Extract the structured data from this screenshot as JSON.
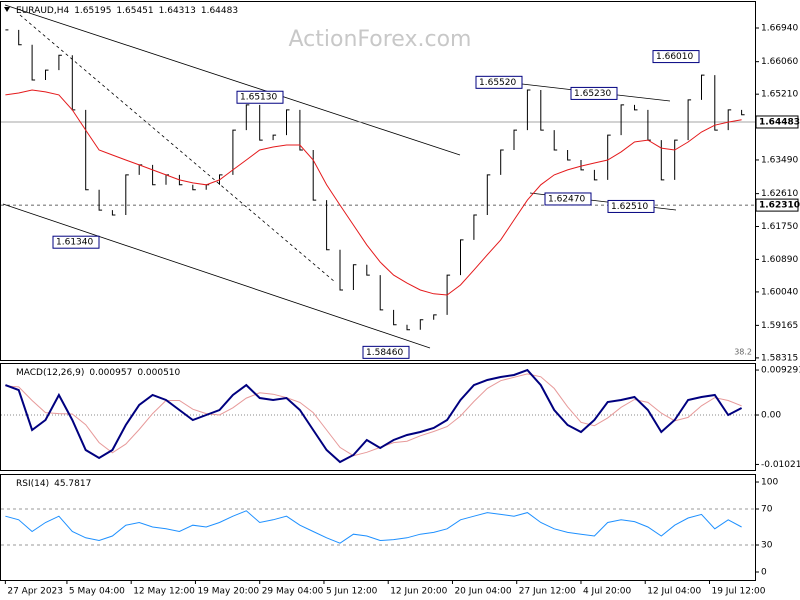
{
  "chart_data": [
    {
      "type": "price",
      "title": "EURAUD,H4",
      "header_values": [
        1.65195,
        1.65451,
        1.64313,
        1.64483
      ],
      "watermark": "ActionForex.com",
      "xlim": [
        -0.4,
        56
      ],
      "ylim": [
        1.5826,
        1.6762
      ],
      "yticks": [
        {
          "value": 1.6694,
          "label": "1.66940"
        },
        {
          "value": 1.6606,
          "label": "1.66060"
        },
        {
          "value": 1.6521,
          "label": "1.65210"
        },
        {
          "value": 1.6349,
          "label": "1.63490"
        },
        {
          "value": 1.6261,
          "label": "1.62610"
        },
        {
          "value": 1.6175,
          "label": "1.61750"
        },
        {
          "value": 1.6089,
          "label": "1.60890"
        },
        {
          "value": 1.6004,
          "label": "1.60040"
        },
        1.59165,
        1.58315
      ],
      "levels": [
        {
          "value": 1.64483,
          "label": "1.64483"
        },
        {
          "value": 1.6231,
          "label": "1.62310"
        }
      ],
      "annotations": [
        {
          "value": 1.6513,
          "label": "1.65130"
        },
        {
          "value": 1.6134,
          "label": "1.61340"
        },
        {
          "value": 1.5846,
          "label": "1.58460"
        },
        {
          "value": 1.6552,
          "label": "1.65520"
        },
        {
          "value": 1.6523,
          "label": "1.65230"
        },
        {
          "value": 1.6247,
          "label": "1.62470"
        },
        {
          "value": 1.6251,
          "label": "1.62510"
        },
        {
          "value": 1.6601,
          "label": "1.66010"
        }
      ],
      "fib_label": 38.2,
      "series": [
        {
          "color": "#000000",
          "values": [
            1.6689,
            1.665,
            1.6558,
            1.6584,
            1.6623,
            1.648,
            1.6271,
            1.6218,
            1.6205,
            1.631,
            1.6336,
            1.6284,
            1.631,
            1.6284,
            1.6271,
            1.6284,
            1.631,
            1.6427,
            1.6493,
            1.6401,
            1.6414,
            1.648,
            1.6375,
            1.6244,
            1.6114,
            1.6009,
            1.6075,
            1.6048,
            1.5957,
            1.5918,
            1.5905,
            1.5931,
            1.5944,
            1.6048,
            1.614,
            1.6205,
            1.631,
            1.6375,
            1.6427,
            1.6532,
            1.6427,
            1.6375,
            1.6349,
            1.6323,
            1.6297,
            1.6414,
            1.6493,
            1.648,
            1.6401,
            1.6297,
            1.6401,
            1.6506,
            1.6571,
            1.6427,
            1.648,
            1.6467
          ]
        },
        {
          "color": "#e41a1c",
          "values": [
            1.6519,
            1.6524,
            1.6532,
            1.6527,
            1.6519,
            1.648,
            1.6427,
            1.6375,
            1.6362,
            1.6349,
            1.6336,
            1.6323,
            1.631,
            1.6297,
            1.6289,
            1.6284,
            1.6297,
            1.6323,
            1.6349,
            1.6375,
            1.6383,
            1.6388,
            1.6388,
            1.6349,
            1.6284,
            1.6231,
            1.6179,
            1.6127,
            1.6082,
            1.6048,
            1.6027,
            1.6009,
            1.5999,
            1.5996,
            1.6022,
            1.6061,
            1.6101,
            1.614,
            1.6192,
            1.6244,
            1.6284,
            1.631,
            1.6323,
            1.6333,
            1.6341,
            1.6349,
            1.637,
            1.6396,
            1.6401,
            1.638,
            1.6375,
            1.6396,
            1.6422,
            1.644,
            1.6448,
            1.6454
          ]
        }
      ]
    },
    {
      "type": "macd",
      "title": "MACD(12,26,9)",
      "header_values": [
        0.000957,
        {
          "value": 0.00051,
          "label": "0.000510"
        }
      ],
      "xlim": [
        -0.4,
        56
      ],
      "ylim": [
        -0.01136,
        0.01054
      ],
      "yticks": [
        0.009291,
        {
          "value": 0,
          "label": "0.00"
        },
        -0.010211
      ],
      "series": [
        {
          "color": "#00007f",
          "values": [
            0.00619,
            0.00516,
            -0.0031,
            -0.00103,
            0.00413,
            -0.00103,
            -0.00723,
            -0.00888,
            -0.00723,
            -0.00206,
            0.00206,
            0.00413,
            0.0031,
            0.00103,
            -0.00103,
            0,
            0.00103,
            0.00413,
            0.00619,
            0.00351,
            0.0031,
            0.00351,
            0.00103,
            -0.0031,
            -0.00723,
            -0.0097,
            -0.00826,
            -0.00516,
            -0.00681,
            -0.00516,
            -0.00413,
            -0.00351,
            -0.00268,
            -0.00103,
            0.0031,
            0.00619,
            0.00723,
            0.00785,
            0.00826,
            0.00929,
            0.00619,
            0.00103,
            -0.00206,
            -0.00351,
            -0.00103,
            0.00268,
            0.0031,
            0.00372,
            0.00103,
            -0.00351,
            -0.00103,
            0.0031,
            0.00372,
            0.00413,
            0,
            0.00145
          ]
        },
        {
          "color": "#e79a9a",
          "values": [
            0.006,
            0.0058,
            0.003,
            0.0005,
            0.0003,
            0.0002,
            -0.002,
            -0.0057,
            -0.0078,
            -0.006,
            -0.003,
            0.0003,
            0.003,
            0.003,
            0.0012,
            0.0003,
            0,
            0.0015,
            0.0035,
            0.0046,
            0.0043,
            0.0036,
            0.0026,
            0.0005,
            -0.0031,
            -0.0067,
            -0.0084,
            -0.0077,
            -0.0067,
            -0.0057,
            -0.0054,
            -0.0043,
            -0.0034,
            -0.0024,
            -0.0002,
            0.0028,
            0.0055,
            0.0071,
            0.0078,
            0.0085,
            0.0079,
            0.0055,
            0.0017,
            -0.0015,
            -0.0022,
            -0.0006,
            0.0016,
            0.0032,
            0.0026,
            0.0004,
            -0.0012,
            -0.0005,
            0.0019,
            0.0036,
            0.003,
            0.0019
          ]
        }
      ]
    },
    {
      "type": "rsi",
      "title": "RSI(14)",
      "header_values": [
        45.7817
      ],
      "xlim": [
        -0.4,
        56
      ],
      "ylim": [
        -8.9,
        107.8
      ],
      "yticks": [
        100,
        70,
        30,
        0
      ],
      "levels": [
        70,
        30
      ],
      "series": [
        {
          "color": "#1e90ff",
          "values": [
            62,
            58,
            45,
            55,
            62,
            45,
            38,
            35,
            40,
            52,
            55,
            50,
            48,
            45,
            52,
            50,
            55,
            62,
            68,
            55,
            58,
            62,
            52,
            45,
            38,
            32,
            42,
            40,
            35,
            36,
            38,
            42,
            44,
            48,
            58,
            62,
            66,
            64,
            62,
            66,
            55,
            48,
            44,
            42,
            40,
            55,
            58,
            56,
            50,
            40,
            52,
            60,
            64,
            48,
            58,
            50
          ]
        }
      ],
      "xticks": [
        {
          "value": 0,
          "label": "27 Apr 2023"
        },
        {
          "value": 4.6,
          "label": "5 May 04:00"
        },
        {
          "value": 9.4,
          "label": "12 May 12:00"
        },
        {
          "value": 14.2,
          "label": "19 May 20:00"
        },
        {
          "value": 19,
          "label": "29 May 04:00"
        },
        {
          "value": 23.8,
          "label": "5 Jun 12:00"
        },
        {
          "value": 28.6,
          "label": "12 Jun 20:00"
        },
        {
          "value": 33.4,
          "label": "20 Jun 04:00"
        },
        {
          "value": 38.2,
          "label": "27 Jun 12:00"
        },
        {
          "value": 43,
          "label": "4 Jul 20:00"
        },
        {
          "value": 47.8,
          "label": "12 Jul 04:00"
        },
        {
          "value": 52.6,
          "label": "19 Jul 12:00"
        }
      ]
    }
  ]
}
